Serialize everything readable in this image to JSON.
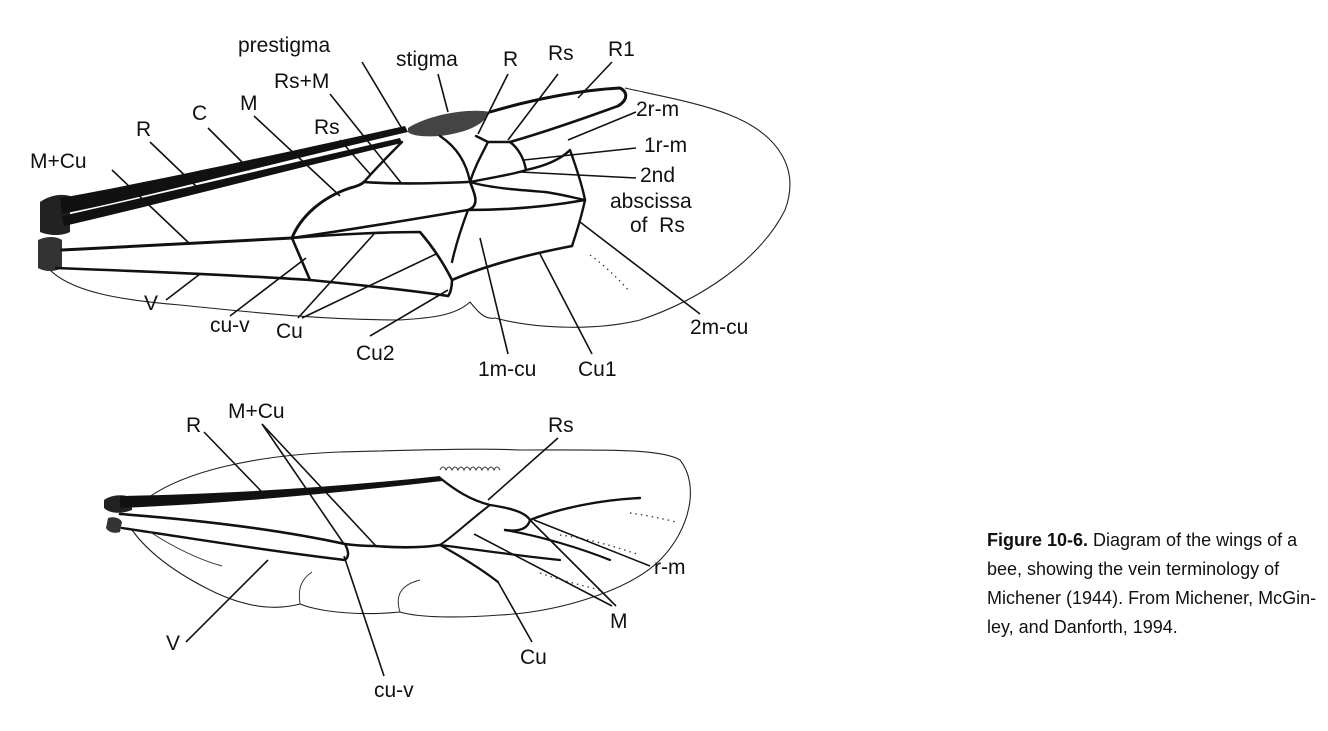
{
  "forewing_labels": {
    "prestigma": "prestigma",
    "stigma": "stigma",
    "r": "R",
    "rs_top": "Rs",
    "r1": "R1",
    "rs_m": "Rs+M",
    "m": "M",
    "c": "C",
    "rs_mid": "Rs",
    "m_cu": "M+Cu",
    "r2m": "2r-m",
    "r1m": "1r-m",
    "second_abscissa_l1": "2nd",
    "second_abscissa_l2": "abscissa",
    "second_abscissa_l3": "of  Rs",
    "v": "V",
    "cu_v": "cu-v",
    "cu": "Cu",
    "cu2": "Cu2",
    "m1cu": "1m-cu",
    "cu1": "Cu1",
    "m2cu": "2m-cu"
  },
  "hindwing_labels": {
    "r": "R",
    "m_cu": "M+Cu",
    "rs": "Rs",
    "rm": "r-m",
    "v": "V",
    "cu_v": "cu-v",
    "cu": "Cu",
    "m": "M"
  },
  "caption": {
    "label": "Figure 10-6.",
    "text": " Diagram of the wings of a bee, showing the vein terminology of Michener (1944). From Michener, McGin-ley, and Danforth, 1994."
  }
}
